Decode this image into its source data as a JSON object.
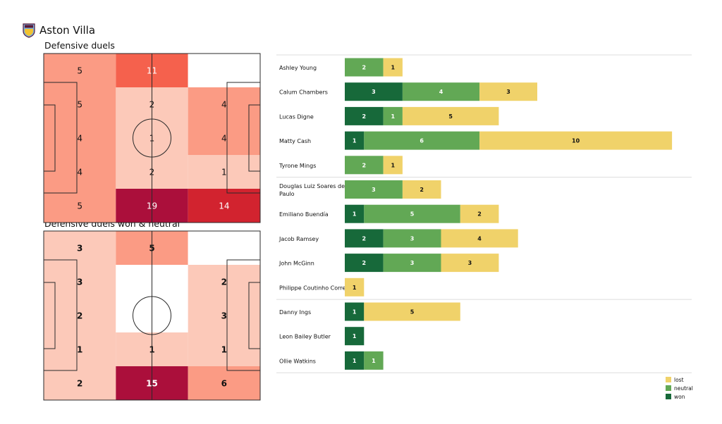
{
  "team": {
    "name": "Aston Villa"
  },
  "colors": {
    "won": "#17693a",
    "neutral": "#62a855",
    "lost": "#f0d26a",
    "heat_scale": [
      "#ffffff",
      "#fcc9b9",
      "#fb9b84",
      "#f5614d",
      "#d2232f",
      "#ab0f3b"
    ]
  },
  "chart_data": [
    {
      "type": "heatmap",
      "title": "Defensive duels",
      "grid": [
        [
          5,
          11,
          0
        ],
        [
          5,
          2,
          4
        ],
        [
          4,
          1,
          4
        ],
        [
          4,
          2,
          1
        ],
        [
          5,
          19,
          14
        ]
      ],
      "labels": [
        [
          "5",
          "11",
          ""
        ],
        [
          "5",
          "2",
          "4"
        ],
        [
          "4",
          "1",
          "4"
        ],
        [
          "4",
          "2",
          "1"
        ],
        [
          "5",
          "19",
          "14"
        ]
      ]
    },
    {
      "type": "heatmap",
      "title": "Defensive duels won & neutral",
      "grid": [
        [
          3,
          5,
          0
        ],
        [
          3,
          0,
          2
        ],
        [
          2,
          0,
          3
        ],
        [
          1,
          1,
          1
        ],
        [
          2,
          15,
          6
        ]
      ],
      "labels": [
        [
          "3",
          "5",
          ""
        ],
        [
          "3",
          "",
          "2"
        ],
        [
          "2",
          "",
          "3"
        ],
        [
          "1",
          "1",
          "1"
        ],
        [
          "2",
          "15",
          "6"
        ]
      ]
    },
    {
      "type": "bar",
      "stacked": true,
      "orientation": "horizontal",
      "categories": [
        "Ashley  Young",
        "Calum Chambers",
        "Lucas Digne",
        "Matty Cash",
        "Tyrone Mings",
        "Douglas Luiz Soares de Paulo",
        "Emiliano Buendía",
        "Jacob Ramsey",
        "John McGinn",
        "Philippe Coutinho Correia",
        "Danny Ings",
        "Leon Bailey Butler",
        "Ollie Watkins"
      ],
      "group_breaks_after": [
        4,
        9
      ],
      "series": [
        {
          "name": "won",
          "values": [
            0,
            3,
            2,
            1,
            0,
            0,
            1,
            2,
            2,
            0,
            1,
            1,
            1
          ]
        },
        {
          "name": "neutral",
          "values": [
            2,
            4,
            1,
            6,
            2,
            3,
            5,
            3,
            3,
            0,
            0,
            0,
            1
          ]
        },
        {
          "name": "lost",
          "values": [
            1,
            3,
            5,
            10,
            1,
            2,
            2,
            4,
            3,
            1,
            5,
            0,
            0
          ]
        }
      ],
      "legend": {
        "position": "bottom-right",
        "entries": [
          "lost",
          "neutral",
          "won"
        ]
      }
    }
  ]
}
